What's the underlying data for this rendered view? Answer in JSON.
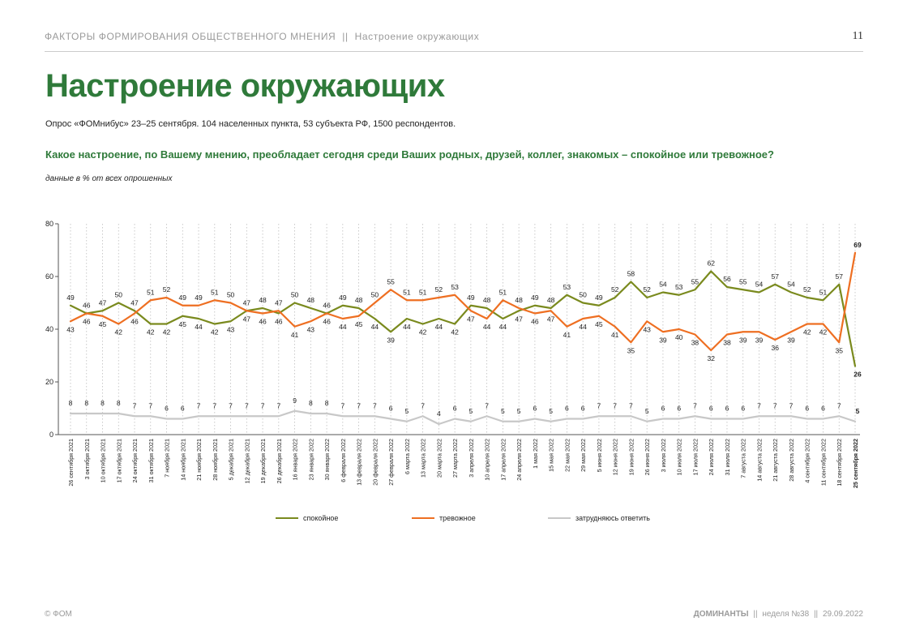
{
  "header": {
    "section": "ФАКТОРЫ ФОРМИРОВАНИЯ ОБЩЕСТВЕННОГО МНЕНИЯ",
    "separator": "||",
    "topic": "Настроение окружающих",
    "page_number": "11"
  },
  "title": "Настроение окружающих",
  "subtitle": "Опрос «ФОМнибус» 23–25 сентября. 104 населенных пункта, 53 субъекта РФ, 1500 респондентов.",
  "question": "Какое настроение, по Вашему мнению, преобладает сегодня среди Ваших родных, друзей, коллег, знакомых – спокойное или тревожное?",
  "note": "данные в % от всех опрошенных",
  "footer": {
    "copyright": "© ФОМ",
    "publication": "ДОМИНАНТЫ",
    "separator": "||",
    "week": "неделя №38",
    "date": "29.09.2022"
  },
  "chart_data": {
    "type": "line",
    "x": [
      "26 сентября 2021",
      "3 октября 2021",
      "10 октября 2021",
      "17 октября 2021",
      "24 октября 2021",
      "31 октября 2021",
      "7 ноября 2021",
      "14 ноября 2021",
      "21 ноября 2021",
      "28 ноября 2021",
      "5 декабря 2021",
      "12 декабря 2021",
      "19 декабря 2021",
      "26 декабря 2021",
      "16 января 2022",
      "23 января 2022",
      "30 января 2022",
      "6 февраля 2022",
      "13 февраля 2022",
      "20 февраля 2022",
      "27 февраля 2022",
      "6 марта 2022",
      "13 марта 2022",
      "20 марта 2022",
      "27 марта 2022",
      "3 апреля 2022",
      "10 апреля 2022",
      "17 апреля 2022",
      "24 апреля 2022",
      "1 мая 2022",
      "15 мая 2022",
      "22 мая 2022",
      "29 мая 2022",
      "5 июня 2022",
      "12 июня 2022",
      "19 июня 2022",
      "26 июня 2022",
      "3 июля 2022",
      "10 июля 2022",
      "17 июля 2022",
      "24 июля 2022",
      "31 июля 2022",
      "7 августа 2022",
      "14 августа 2022",
      "21 августа 2022",
      "28 августа 2022",
      "4 сентября 2022",
      "11 сентября 2022",
      "18 сентября 2022",
      "25 сентября 2022"
    ],
    "series": [
      {
        "name": "спокойное",
        "color": "#7a8a1e",
        "values": [
          49,
          46,
          47,
          50,
          47,
          42,
          42,
          45,
          44,
          42,
          43,
          47,
          48,
          46,
          50,
          48,
          46,
          49,
          48,
          44,
          39,
          44,
          42,
          44,
          42,
          49,
          48,
          44,
          47,
          49,
          48,
          53,
          50,
          49,
          52,
          58,
          52,
          54,
          53,
          55,
          62,
          56,
          55,
          54,
          57,
          54,
          52,
          51,
          57,
          26
        ]
      },
      {
        "name": "тревожное",
        "color": "#ee6f22",
        "values": [
          43,
          46,
          45,
          42,
          46,
          51,
          52,
          49,
          49,
          51,
          50,
          47,
          46,
          47,
          41,
          43,
          46,
          44,
          45,
          50,
          55,
          51,
          51,
          52,
          53,
          47,
          44,
          51,
          48,
          46,
          47,
          41,
          44,
          45,
          41,
          35,
          43,
          39,
          40,
          38,
          32,
          38,
          39,
          39,
          36,
          39,
          42,
          42,
          35,
          69
        ]
      },
      {
        "name": "затрудняюсь ответить",
        "color": "#c8c8c8",
        "values": [
          8,
          8,
          8,
          8,
          7,
          7,
          6,
          6,
          7,
          7,
          7,
          7,
          7,
          7,
          9,
          8,
          8,
          7,
          7,
          7,
          6,
          5,
          7,
          4,
          6,
          5,
          7,
          5,
          5,
          6,
          5,
          6,
          6,
          7,
          7,
          7,
          5,
          6,
          6,
          7,
          6,
          6,
          6,
          7,
          7,
          7,
          6,
          6,
          7,
          5
        ]
      }
    ],
    "ylim": [
      0,
      80
    ],
    "yticks": [
      0,
      20,
      40,
      60,
      80
    ],
    "grid": "vertical dotted",
    "legend_position": "bottom"
  }
}
